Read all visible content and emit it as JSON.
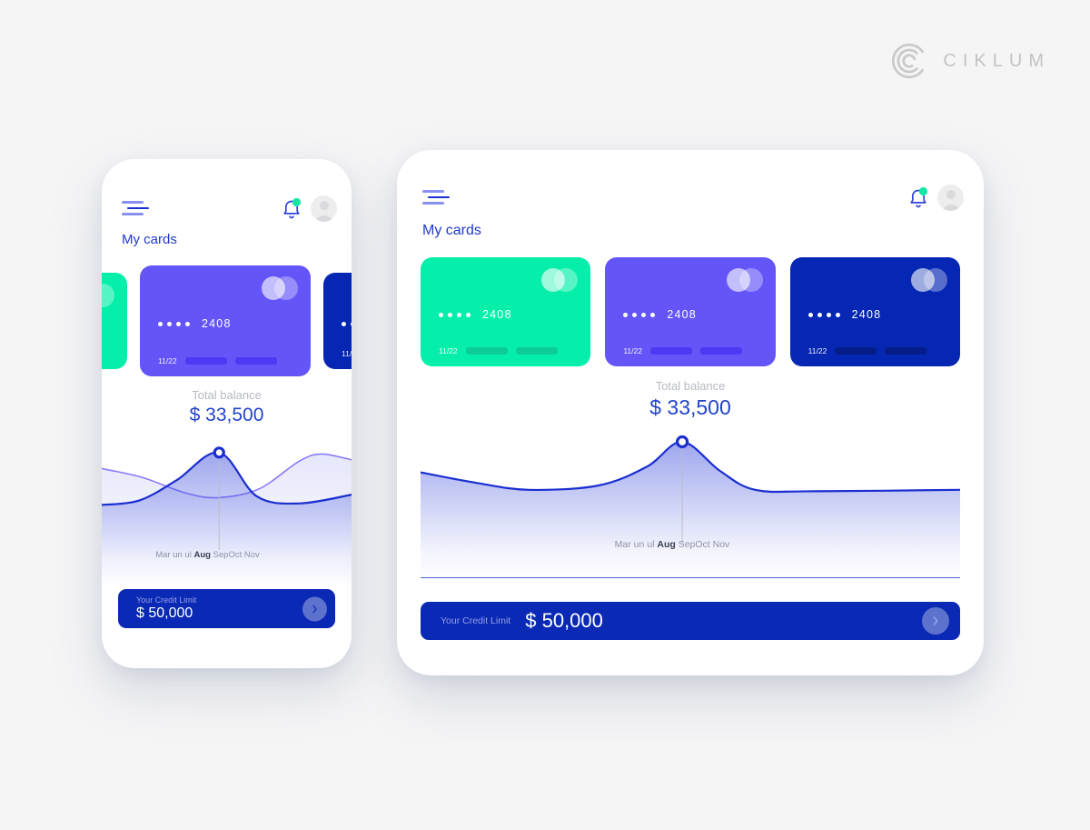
{
  "page_bg": "#f5f5f6",
  "brand": {
    "name": "CIKLUM"
  },
  "colors": {
    "page_bg": "#f5f5f6",
    "accent_blue": "#2139c8",
    "chart_blue": "#1b2fd0",
    "chart_secondary": "#8b7cf8",
    "button_blue": "#0a29b4",
    "notification_green": "#14e7a4",
    "text_gray": "#b7bac4",
    "months_gray": "#8f94a3",
    "brand_gray": "#c3c3c3"
  },
  "header": {
    "title": "My cards"
  },
  "icons": {
    "menu": "hamburger-icon",
    "notifications": "bell-icon with green unread dot",
    "profile": "avatar",
    "card_network": "two overlapping translucent circles",
    "credit_action": "chevron-right-icon in circle"
  },
  "cards": [
    {
      "name": "green card",
      "last4": "2408",
      "expiry": "11/22",
      "color": "#05efab",
      "strip_color": "#0bcd95"
    },
    {
      "name": "purple card",
      "last4": "2408",
      "expiry": "11/22",
      "color": "#6355f8",
      "strip_color": "#4c3af2"
    },
    {
      "name": "navy card",
      "last4": "2408",
      "expiry": "11/22",
      "color": "#0527b4",
      "strip_color": "#041d88"
    }
  ],
  "balance": {
    "label": "Total balance",
    "value": "$ 33,500"
  },
  "months": {
    "before": "Mar un ul ",
    "highlight": "Aug",
    "after": " SepOct Nov"
  },
  "credit": {
    "label": "Your Credit Limit",
    "value": "$ 50,000"
  },
  "chart_data": {
    "type": "area",
    "title": "Total balance",
    "highlighted_value": "$ 33,500",
    "highlighted_month": "Aug",
    "x_labels_rendered": "Mar un ul Aug SepOct Nov",
    "y_axis": "hidden",
    "grid": false,
    "legend": "none",
    "series": [
      {
        "id": "balance_main_tablet",
        "name": "Total balance trend (tablet)",
        "fill": true,
        "marker_at_min": true,
        "points": [
          [
            0,
            0.26
          ],
          [
            0.1,
            0.33
          ],
          [
            0.2,
            0.38
          ],
          [
            0.33,
            0.35
          ],
          [
            0.42,
            0.22
          ],
          [
            0.485,
            0.05
          ],
          [
            0.555,
            0.25
          ],
          [
            0.62,
            0.38
          ],
          [
            0.73,
            0.39
          ],
          [
            1,
            0.38
          ]
        ]
      },
      {
        "id": "balance_main_mobile",
        "name": "Total balance trend (mobile)",
        "fill": true,
        "marker_at_min": true,
        "points": [
          [
            0,
            0.44
          ],
          [
            0.15,
            0.41
          ],
          [
            0.3,
            0.27
          ],
          [
            0.47,
            0.08
          ],
          [
            0.62,
            0.38
          ],
          [
            0.79,
            0.43
          ],
          [
            1,
            0.37
          ]
        ]
      },
      {
        "id": "balance_secondary_mobile",
        "name": "Secondary trend (mobile)",
        "fill": true,
        "points": [
          [
            0,
            0.19
          ],
          [
            0.16,
            0.25
          ],
          [
            0.34,
            0.36
          ],
          [
            0.47,
            0.39
          ],
          [
            0.63,
            0.33
          ],
          [
            0.79,
            0.14
          ],
          [
            0.88,
            0.09
          ],
          [
            1,
            0.13
          ]
        ]
      }
    ]
  }
}
